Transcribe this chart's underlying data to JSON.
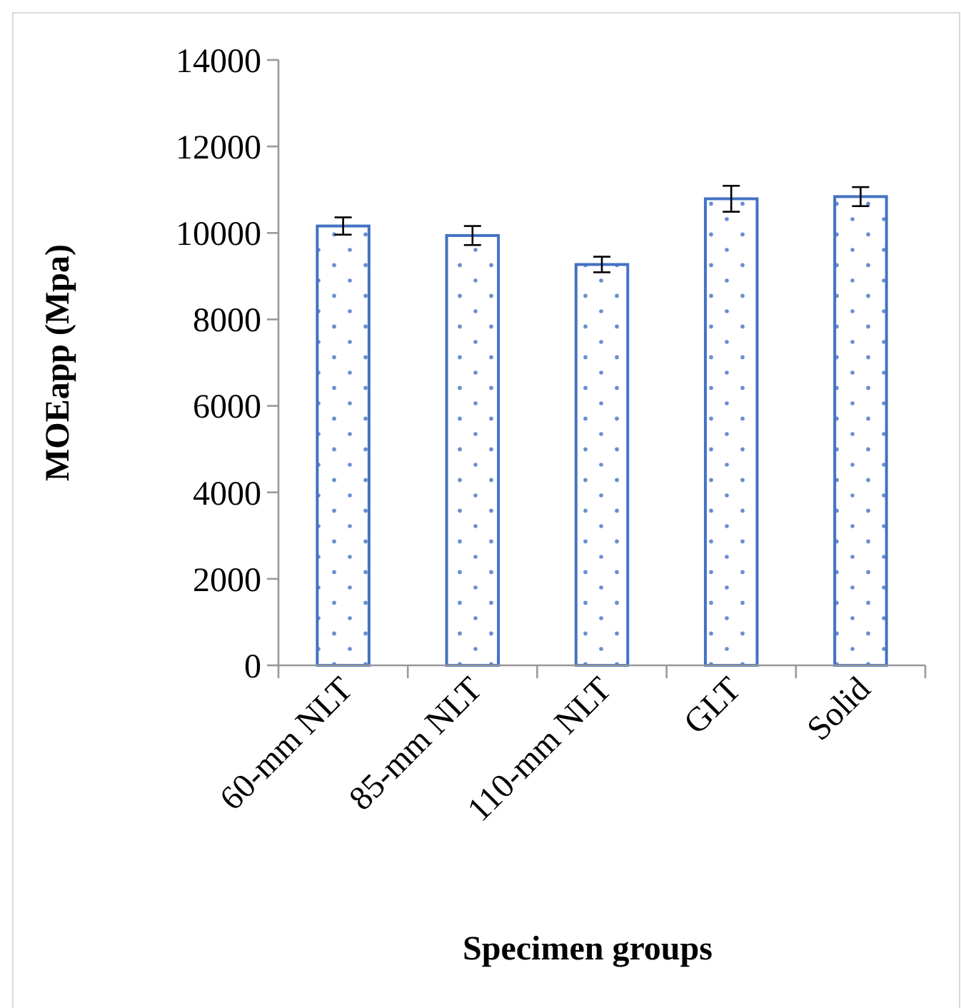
{
  "chart_data": {
    "type": "bar",
    "xlabel": "Specimen groups",
    "ylabel": "MOEapp (Mpa)",
    "categories": [
      "60-mm NLT",
      "85-mm NLT",
      "110-mm NLT",
      "GLT",
      "Solid"
    ],
    "series": [
      {
        "color": "#4472c4",
        "values": [
          10160,
          9940,
          9270,
          10790,
          10840
        ],
        "errors": [
          200,
          220,
          180,
          300,
          220
        ]
      }
    ],
    "ylim": [
      0,
      14000
    ],
    "yticks": [
      0,
      2000,
      4000,
      6000,
      8000,
      10000,
      12000,
      14000
    ],
    "grid": false
  }
}
